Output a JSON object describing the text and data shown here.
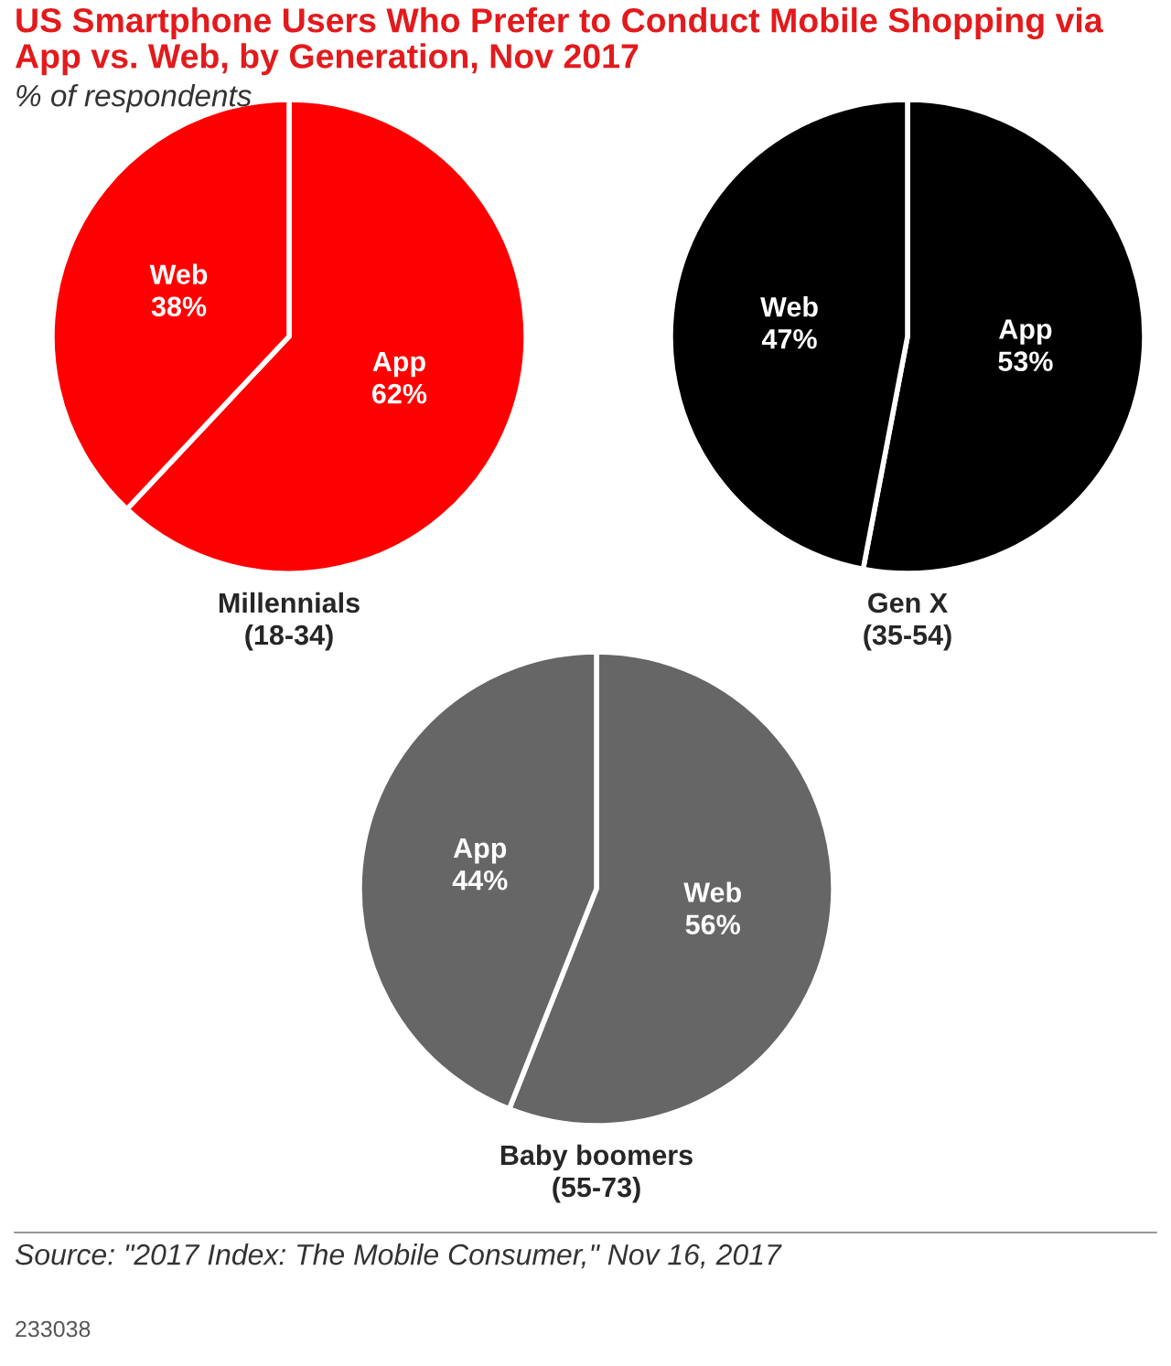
{
  "chart_data": [
    {
      "type": "pie",
      "title": "US Smartphone Users Who Prefer to Conduct Mobile Shopping via App vs. Web, by Generation, Nov 2017",
      "subtitle": "% of respondents",
      "xlabel": "Millennials\n(18-34)",
      "categories": [
        "App",
        "Web"
      ],
      "values": [
        62,
        38
      ],
      "value_labels": [
        "62%",
        "38%"
      ],
      "colors": [
        "#ff0000",
        "#ff0000"
      ]
    },
    {
      "type": "pie",
      "xlabel": "Gen X\n(35-54)",
      "categories": [
        "App",
        "Web"
      ],
      "values": [
        53,
        47
      ],
      "value_labels": [
        "53%",
        "47%"
      ],
      "colors": [
        "#000000",
        "#000000"
      ]
    },
    {
      "type": "pie",
      "xlabel": "Baby boomers\n(55-73)",
      "categories": [
        "Web",
        "App"
      ],
      "values": [
        56,
        44
      ],
      "value_labels": [
        "56%",
        "44%"
      ],
      "colors": [
        "#666666",
        "#666666"
      ],
      "annotations": [
        "Source: \"2017 Index: The Mobile Consumer,\" Nov 16, 2017",
        "233038"
      ]
    }
  ]
}
